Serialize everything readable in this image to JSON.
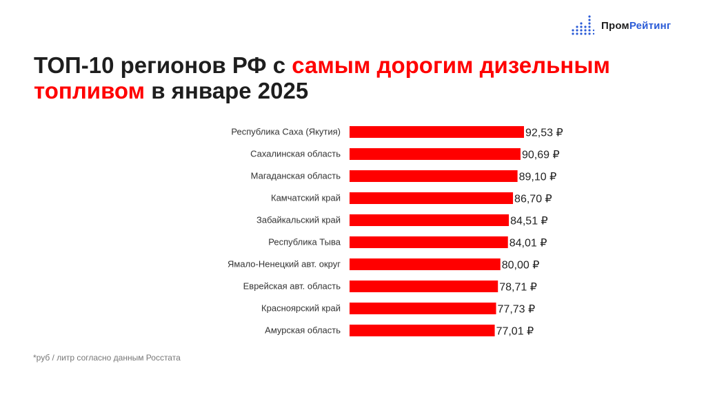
{
  "brand": {
    "part1": "Пром",
    "part2": "Рейтинг",
    "accent_color": "#2a5bd7",
    "icon": "bar-dots-icon"
  },
  "title": {
    "part1": "ТОП-10 регионов РФ с ",
    "highlight1": "самым дорогим дизельным",
    "highlight2": "топливом",
    "part2": " в январе 2025",
    "highlight_color": "#ff0000"
  },
  "footnote": "*руб / литр согласно данным Росстата",
  "chart_data": {
    "type": "bar",
    "orientation": "horizontal",
    "bar_color": "#ff0000",
    "value_suffix": " ₽",
    "categories": [
      "Республика Саха (Якутия)",
      "Сахалинская область",
      "Магаданская область",
      "Камчатский край",
      "Забайкальский край",
      "Республика Тыва",
      "Ямало-Ненецкий авт. округ",
      "Еврейская авт. область",
      "Красноярский край",
      "Амурская область"
    ],
    "values": [
      92.53,
      90.69,
      89.1,
      86.7,
      84.51,
      84.01,
      80.0,
      78.71,
      77.73,
      77.01
    ],
    "value_labels": [
      "92,53 ₽",
      "90,69 ₽",
      "89,10 ₽",
      "86,70 ₽",
      "84,51 ₽",
      "84,01 ₽",
      "80,00 ₽",
      "78,71 ₽",
      "77,73 ₽",
      "77,01 ₽"
    ],
    "xlim": [
      0,
      92.53
    ],
    "grid": false,
    "legend": "none"
  }
}
